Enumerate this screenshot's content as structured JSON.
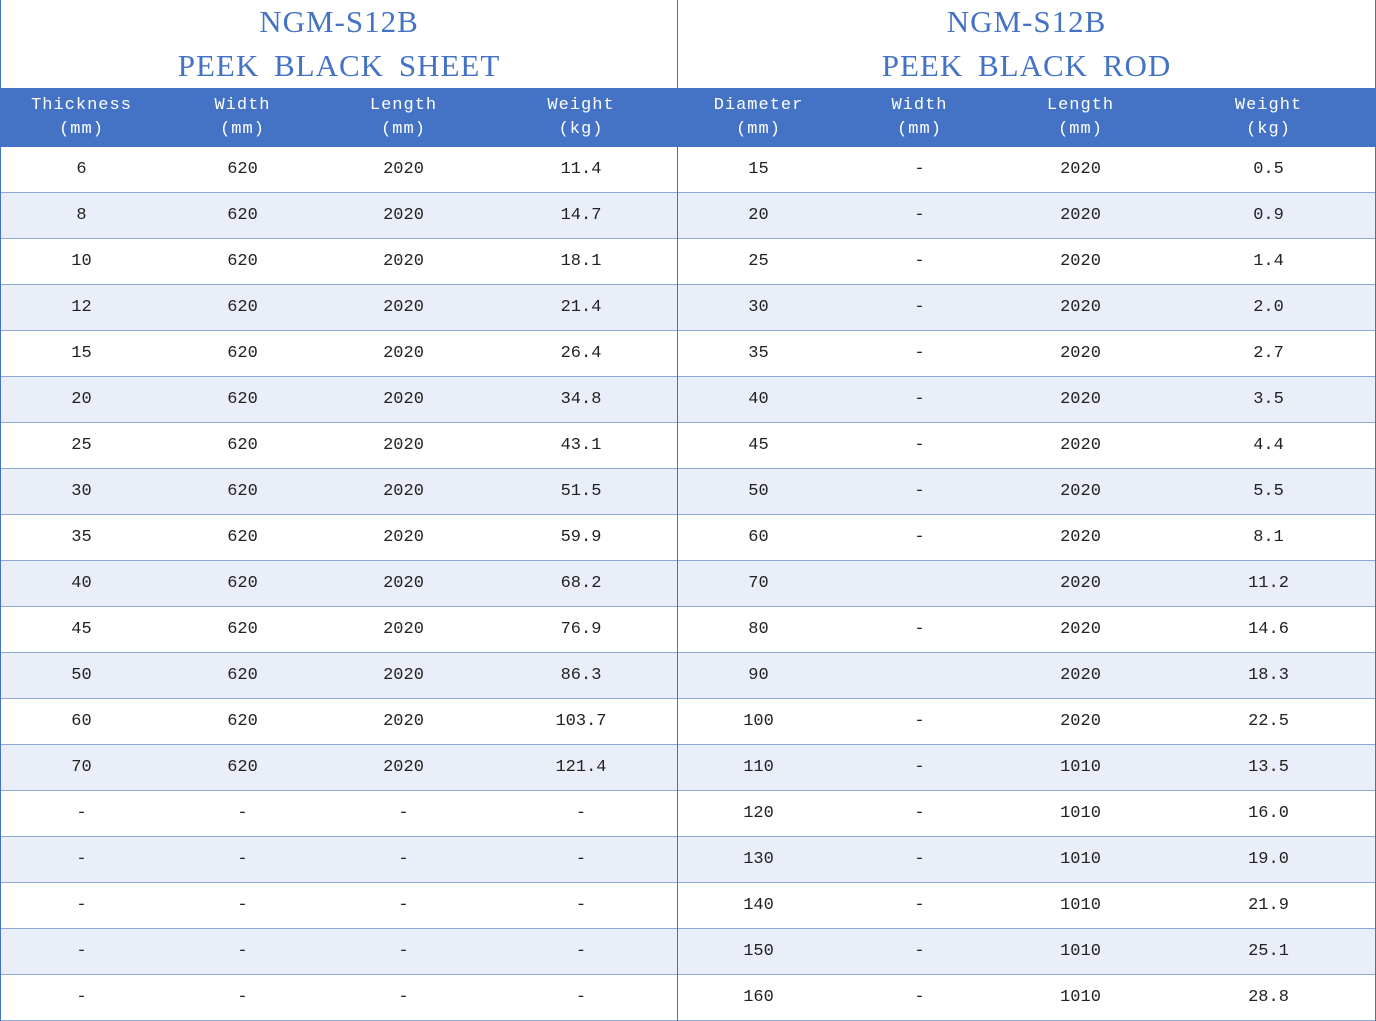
{
  "sheet": {
    "title": [
      "NGM-S12B",
      "PEEK BLACK SHEET"
    ],
    "headers": [
      [
        "Thickness",
        "(mm)"
      ],
      [
        "Width",
        "(mm)"
      ],
      [
        "Length",
        "(mm)"
      ],
      [
        "Weight",
        "(kg)"
      ]
    ],
    "rows": [
      [
        "6",
        "620",
        "2020",
        "11.4"
      ],
      [
        "8",
        "620",
        "2020",
        "14.7"
      ],
      [
        "10",
        "620",
        "2020",
        "18.1"
      ],
      [
        "12",
        "620",
        "2020",
        "21.4"
      ],
      [
        "15",
        "620",
        "2020",
        "26.4"
      ],
      [
        "20",
        "620",
        "2020",
        "34.8"
      ],
      [
        "25",
        "620",
        "2020",
        "43.1"
      ],
      [
        "30",
        "620",
        "2020",
        "51.5"
      ],
      [
        "35",
        "620",
        "2020",
        "59.9"
      ],
      [
        "40",
        "620",
        "2020",
        "68.2"
      ],
      [
        "45",
        "620",
        "2020",
        "76.9"
      ],
      [
        "50",
        "620",
        "2020",
        "86.3"
      ],
      [
        "60",
        "620",
        "2020",
        "103.7"
      ],
      [
        "70",
        "620",
        "2020",
        "121.4"
      ],
      [
        "-",
        "-",
        "-",
        "-"
      ],
      [
        "-",
        "-",
        "-",
        "-"
      ],
      [
        "-",
        "-",
        "-",
        "-"
      ],
      [
        "-",
        "-",
        "-",
        "-"
      ],
      [
        "-",
        "-",
        "-",
        "-"
      ]
    ]
  },
  "rod": {
    "title": [
      "NGM-S12B",
      "PEEK BLACK ROD"
    ],
    "headers": [
      [
        "Diameter",
        "(mm)"
      ],
      [
        "Width",
        "(mm)"
      ],
      [
        "Length",
        "(mm)"
      ],
      [
        "Weight",
        "(kg)"
      ]
    ],
    "rows": [
      [
        "15",
        "-",
        "2020",
        "0.5"
      ],
      [
        "20",
        "-",
        "2020",
        "0.9"
      ],
      [
        "25",
        "-",
        "2020",
        "1.4"
      ],
      [
        "30",
        "-",
        "2020",
        "2.0"
      ],
      [
        "35",
        "-",
        "2020",
        "2.7"
      ],
      [
        "40",
        "-",
        "2020",
        "3.5"
      ],
      [
        "45",
        "-",
        "2020",
        "4.4"
      ],
      [
        "50",
        "-",
        "2020",
        "5.5"
      ],
      [
        "60",
        "-",
        "2020",
        "8.1"
      ],
      [
        "70",
        null,
        "2020",
        "11.2"
      ],
      [
        "80",
        "-",
        "2020",
        "14.6"
      ],
      [
        "90",
        null,
        "2020",
        "18.3"
      ],
      [
        "100",
        "-",
        "2020",
        "22.5"
      ],
      [
        "110",
        "-",
        "1010",
        "13.5"
      ],
      [
        "120",
        "-",
        "1010",
        "16.0"
      ],
      [
        "130",
        "-",
        "1010",
        "19.0"
      ],
      [
        "140",
        "-",
        "1010",
        "21.9"
      ],
      [
        "150",
        "-",
        "1010",
        "25.1"
      ],
      [
        "160",
        "-",
        "1010",
        "28.8"
      ]
    ]
  }
}
